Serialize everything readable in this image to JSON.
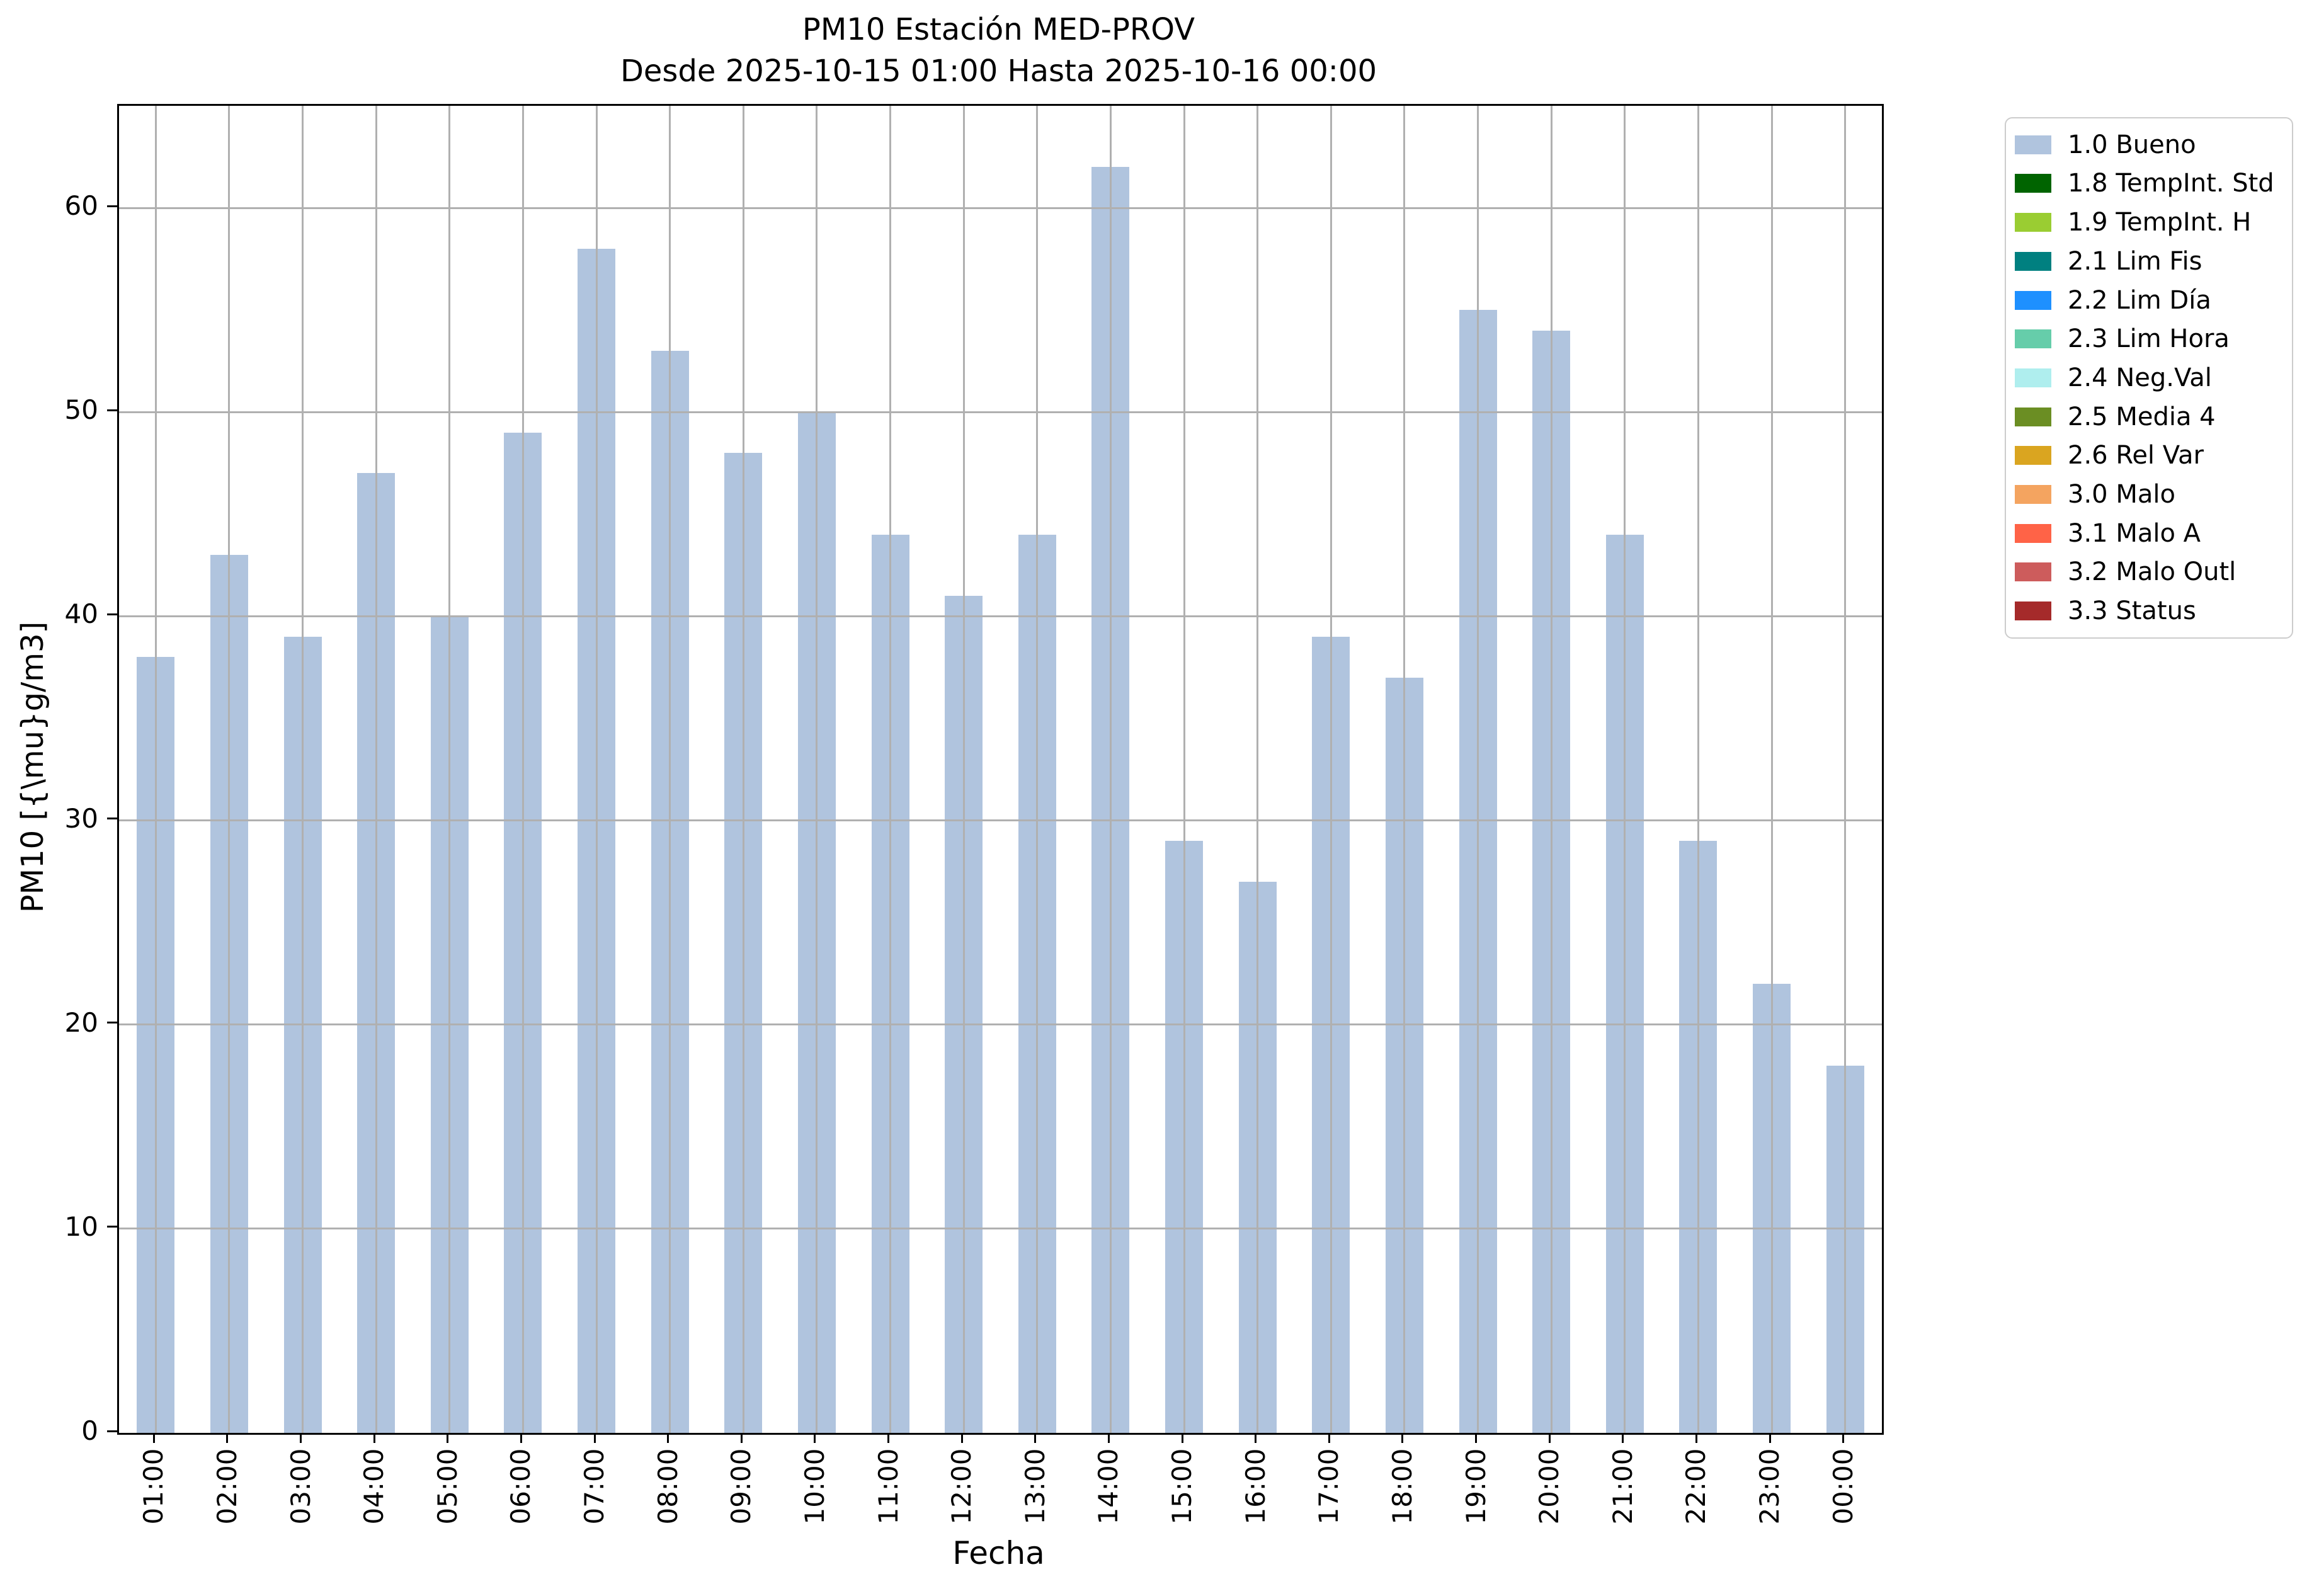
{
  "chart_data": {
    "type": "bar",
    "title": "PM10 Estación MED-PROV",
    "subtitle": "Desde 2025-10-15 01:00 Hasta 2025-10-16 00:00",
    "xlabel": "Fecha",
    "ylabel": "PM10 [{\\mu}g/m3]",
    "ylim": [
      0,
      65
    ],
    "yticks": [
      0,
      10,
      20,
      30,
      40,
      50,
      60
    ],
    "grid": true,
    "legend_position": "outside upper right",
    "bar_color": "#b0c4de",
    "grid_color": "#b0b0b0",
    "categories": [
      "01:00",
      "02:00",
      "03:00",
      "04:00",
      "05:00",
      "06:00",
      "07:00",
      "08:00",
      "09:00",
      "10:00",
      "11:00",
      "12:00",
      "13:00",
      "14:00",
      "15:00",
      "16:00",
      "17:00",
      "18:00",
      "19:00",
      "20:00",
      "21:00",
      "22:00",
      "23:00",
      "00:00"
    ],
    "values": [
      38,
      43,
      39,
      47,
      40,
      49,
      58,
      53,
      48,
      50,
      44,
      41,
      44,
      62,
      29,
      27,
      39,
      37,
      55,
      54,
      44,
      29,
      22,
      18
    ],
    "series_label": "1.0 Bueno",
    "legend_entries": [
      {
        "label": "1.0 Bueno",
        "color": "#b0c4de"
      },
      {
        "label": "1.8 TempInt. Std",
        "color": "#006400"
      },
      {
        "label": "1.9 TempInt. H",
        "color": "#9acd32"
      },
      {
        "label": "2.1 Lim Fis",
        "color": "#008080"
      },
      {
        "label": "2.2 Lim Día",
        "color": "#1e90ff"
      },
      {
        "label": "2.3 Lim Hora",
        "color": "#66cdaa"
      },
      {
        "label": "2.4 Neg.Val",
        "color": "#afeeee"
      },
      {
        "label": "2.5 Media 4",
        "color": "#6b8e23"
      },
      {
        "label": "2.6 Rel Var",
        "color": "#daa520"
      },
      {
        "label": "3.0 Malo",
        "color": "#f4a460"
      },
      {
        "label": "3.1 Malo A",
        "color": "#ff6347"
      },
      {
        "label": "3.2 Malo Outl",
        "color": "#cd5c5c"
      },
      {
        "label": "3.3 Status",
        "color": "#a52a2a"
      }
    ]
  }
}
